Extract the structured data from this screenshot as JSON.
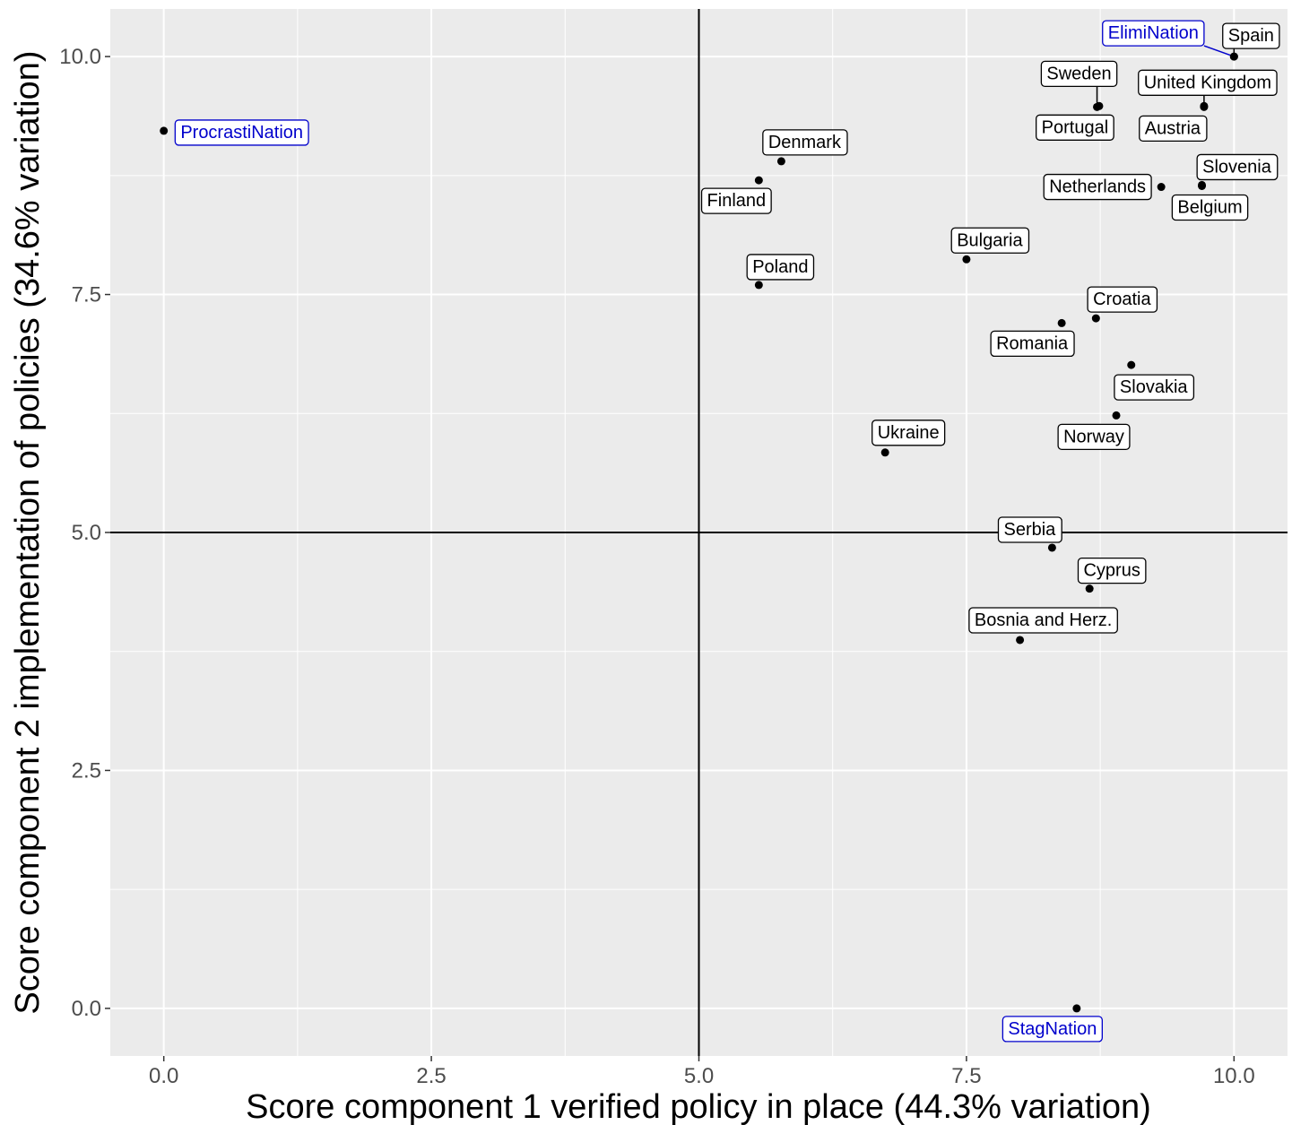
{
  "chart_data": {
    "type": "scatter",
    "title": "",
    "xlabel": "Score component 1 verified policy in place (44.3% variation)",
    "ylabel": "Score component 2 implementation of policies (34.6% variation)",
    "xlim": [
      -0.5,
      10.5
    ],
    "ylim": [
      -0.5,
      10.5
    ],
    "x_ticks": [
      0,
      2.5,
      5,
      7.5,
      10
    ],
    "x_tick_labels": [
      "0.0",
      "2.5",
      "5.0",
      "7.5",
      "10.0"
    ],
    "y_ticks": [
      0,
      2.5,
      5,
      7.5,
      10
    ],
    "y_tick_labels": [
      "0.0",
      "2.5",
      "5.0",
      "7.5",
      "10.0"
    ],
    "reference_lines": {
      "x": 5.0,
      "y": 5.0
    },
    "grid": true,
    "background": "#ebebeb",
    "grid_color": "#ffffff",
    "reference_color": "#000000",
    "country_color": "#000000",
    "archetype_color": "#0000cc",
    "points": [
      {
        "label": "Spain",
        "x": 10.0,
        "y": 10.0,
        "group": "country"
      },
      {
        "label": "ElimiNation",
        "x": 10.0,
        "y": 10.0,
        "group": "archetype"
      },
      {
        "label": "Sweden",
        "x": 8.72,
        "y": 9.47,
        "group": "country"
      },
      {
        "label": "United Kingdom",
        "x": 9.72,
        "y": 9.48,
        "group": "country"
      },
      {
        "label": "Portugal",
        "x": 8.74,
        "y": 9.48,
        "group": "country"
      },
      {
        "label": "Austria",
        "x": 9.72,
        "y": 9.47,
        "group": "country"
      },
      {
        "label": "ProcrastiNation",
        "x": 0.0,
        "y": 9.22,
        "group": "archetype"
      },
      {
        "label": "Denmark",
        "x": 5.77,
        "y": 8.9,
        "group": "country"
      },
      {
        "label": "Finland",
        "x": 5.56,
        "y": 8.7,
        "group": "country"
      },
      {
        "label": "Slovenia",
        "x": 9.7,
        "y": 8.65,
        "group": "country"
      },
      {
        "label": "Netherlands",
        "x": 9.32,
        "y": 8.63,
        "group": "country"
      },
      {
        "label": "Belgium",
        "x": 9.7,
        "y": 8.64,
        "group": "country"
      },
      {
        "label": "Bulgaria",
        "x": 7.5,
        "y": 7.87,
        "group": "country"
      },
      {
        "label": "Poland",
        "x": 5.56,
        "y": 7.6,
        "group": "country"
      },
      {
        "label": "Croatia",
        "x": 8.71,
        "y": 7.25,
        "group": "country"
      },
      {
        "label": "Romania",
        "x": 8.39,
        "y": 7.2,
        "group": "country"
      },
      {
        "label": "Slovakia",
        "x": 9.04,
        "y": 6.76,
        "group": "country"
      },
      {
        "label": "Norway",
        "x": 8.9,
        "y": 6.23,
        "group": "country"
      },
      {
        "label": "Ukraine",
        "x": 6.74,
        "y": 5.84,
        "group": "country"
      },
      {
        "label": "Serbia",
        "x": 8.3,
        "y": 4.84,
        "group": "country"
      },
      {
        "label": "Cyprus",
        "x": 8.65,
        "y": 4.41,
        "group": "country"
      },
      {
        "label": "Bosnia and Herz.",
        "x": 8.0,
        "y": 3.87,
        "group": "country"
      },
      {
        "label": "StagNation",
        "x": 8.53,
        "y": 0.0,
        "group": "archetype"
      }
    ]
  }
}
